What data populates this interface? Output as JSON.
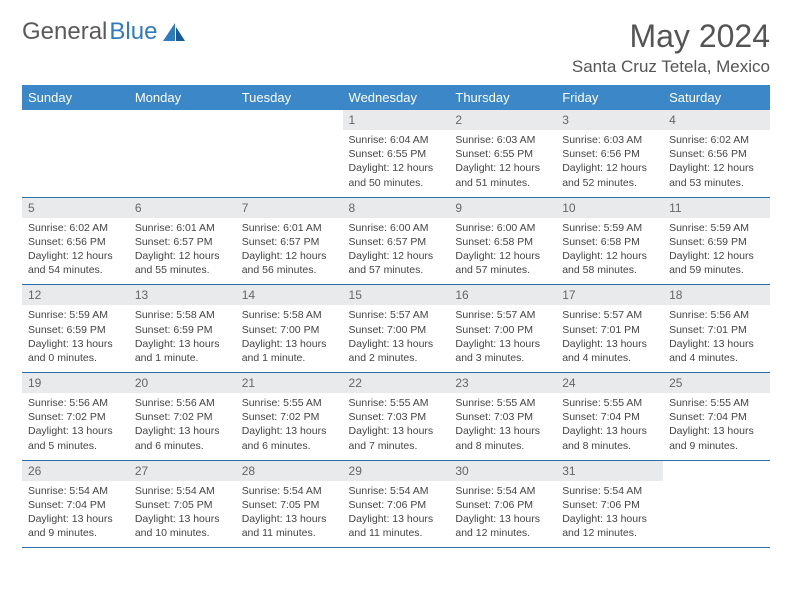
{
  "logo": {
    "part1": "General",
    "part2": "Blue"
  },
  "title": "May 2024",
  "location": "Santa Cruz Tetela, Mexico",
  "colors": {
    "header_bg": "#3b87c8",
    "header_fg": "#ffffff",
    "daynum_bg": "#e9eaeb",
    "row_border": "#2f6fa8",
    "logo_gray": "#5a5a5a",
    "logo_blue": "#2f7bbf"
  },
  "day_headers": [
    "Sunday",
    "Monday",
    "Tuesday",
    "Wednesday",
    "Thursday",
    "Friday",
    "Saturday"
  ],
  "weeks": [
    [
      {
        "n": "",
        "l1": "",
        "l2": "",
        "l3": "",
        "l4": ""
      },
      {
        "n": "",
        "l1": "",
        "l2": "",
        "l3": "",
        "l4": ""
      },
      {
        "n": "",
        "l1": "",
        "l2": "",
        "l3": "",
        "l4": ""
      },
      {
        "n": "1",
        "l1": "Sunrise: 6:04 AM",
        "l2": "Sunset: 6:55 PM",
        "l3": "Daylight: 12 hours",
        "l4": "and 50 minutes."
      },
      {
        "n": "2",
        "l1": "Sunrise: 6:03 AM",
        "l2": "Sunset: 6:55 PM",
        "l3": "Daylight: 12 hours",
        "l4": "and 51 minutes."
      },
      {
        "n": "3",
        "l1": "Sunrise: 6:03 AM",
        "l2": "Sunset: 6:56 PM",
        "l3": "Daylight: 12 hours",
        "l4": "and 52 minutes."
      },
      {
        "n": "4",
        "l1": "Sunrise: 6:02 AM",
        "l2": "Sunset: 6:56 PM",
        "l3": "Daylight: 12 hours",
        "l4": "and 53 minutes."
      }
    ],
    [
      {
        "n": "5",
        "l1": "Sunrise: 6:02 AM",
        "l2": "Sunset: 6:56 PM",
        "l3": "Daylight: 12 hours",
        "l4": "and 54 minutes."
      },
      {
        "n": "6",
        "l1": "Sunrise: 6:01 AM",
        "l2": "Sunset: 6:57 PM",
        "l3": "Daylight: 12 hours",
        "l4": "and 55 minutes."
      },
      {
        "n": "7",
        "l1": "Sunrise: 6:01 AM",
        "l2": "Sunset: 6:57 PM",
        "l3": "Daylight: 12 hours",
        "l4": "and 56 minutes."
      },
      {
        "n": "8",
        "l1": "Sunrise: 6:00 AM",
        "l2": "Sunset: 6:57 PM",
        "l3": "Daylight: 12 hours",
        "l4": "and 57 minutes."
      },
      {
        "n": "9",
        "l1": "Sunrise: 6:00 AM",
        "l2": "Sunset: 6:58 PM",
        "l3": "Daylight: 12 hours",
        "l4": "and 57 minutes."
      },
      {
        "n": "10",
        "l1": "Sunrise: 5:59 AM",
        "l2": "Sunset: 6:58 PM",
        "l3": "Daylight: 12 hours",
        "l4": "and 58 minutes."
      },
      {
        "n": "11",
        "l1": "Sunrise: 5:59 AM",
        "l2": "Sunset: 6:59 PM",
        "l3": "Daylight: 12 hours",
        "l4": "and 59 minutes."
      }
    ],
    [
      {
        "n": "12",
        "l1": "Sunrise: 5:59 AM",
        "l2": "Sunset: 6:59 PM",
        "l3": "Daylight: 13 hours",
        "l4": "and 0 minutes."
      },
      {
        "n": "13",
        "l1": "Sunrise: 5:58 AM",
        "l2": "Sunset: 6:59 PM",
        "l3": "Daylight: 13 hours",
        "l4": "and 1 minute."
      },
      {
        "n": "14",
        "l1": "Sunrise: 5:58 AM",
        "l2": "Sunset: 7:00 PM",
        "l3": "Daylight: 13 hours",
        "l4": "and 1 minute."
      },
      {
        "n": "15",
        "l1": "Sunrise: 5:57 AM",
        "l2": "Sunset: 7:00 PM",
        "l3": "Daylight: 13 hours",
        "l4": "and 2 minutes."
      },
      {
        "n": "16",
        "l1": "Sunrise: 5:57 AM",
        "l2": "Sunset: 7:00 PM",
        "l3": "Daylight: 13 hours",
        "l4": "and 3 minutes."
      },
      {
        "n": "17",
        "l1": "Sunrise: 5:57 AM",
        "l2": "Sunset: 7:01 PM",
        "l3": "Daylight: 13 hours",
        "l4": "and 4 minutes."
      },
      {
        "n": "18",
        "l1": "Sunrise: 5:56 AM",
        "l2": "Sunset: 7:01 PM",
        "l3": "Daylight: 13 hours",
        "l4": "and 4 minutes."
      }
    ],
    [
      {
        "n": "19",
        "l1": "Sunrise: 5:56 AM",
        "l2": "Sunset: 7:02 PM",
        "l3": "Daylight: 13 hours",
        "l4": "and 5 minutes."
      },
      {
        "n": "20",
        "l1": "Sunrise: 5:56 AM",
        "l2": "Sunset: 7:02 PM",
        "l3": "Daylight: 13 hours",
        "l4": "and 6 minutes."
      },
      {
        "n": "21",
        "l1": "Sunrise: 5:55 AM",
        "l2": "Sunset: 7:02 PM",
        "l3": "Daylight: 13 hours",
        "l4": "and 6 minutes."
      },
      {
        "n": "22",
        "l1": "Sunrise: 5:55 AM",
        "l2": "Sunset: 7:03 PM",
        "l3": "Daylight: 13 hours",
        "l4": "and 7 minutes."
      },
      {
        "n": "23",
        "l1": "Sunrise: 5:55 AM",
        "l2": "Sunset: 7:03 PM",
        "l3": "Daylight: 13 hours",
        "l4": "and 8 minutes."
      },
      {
        "n": "24",
        "l1": "Sunrise: 5:55 AM",
        "l2": "Sunset: 7:04 PM",
        "l3": "Daylight: 13 hours",
        "l4": "and 8 minutes."
      },
      {
        "n": "25",
        "l1": "Sunrise: 5:55 AM",
        "l2": "Sunset: 7:04 PM",
        "l3": "Daylight: 13 hours",
        "l4": "and 9 minutes."
      }
    ],
    [
      {
        "n": "26",
        "l1": "Sunrise: 5:54 AM",
        "l2": "Sunset: 7:04 PM",
        "l3": "Daylight: 13 hours",
        "l4": "and 9 minutes."
      },
      {
        "n": "27",
        "l1": "Sunrise: 5:54 AM",
        "l2": "Sunset: 7:05 PM",
        "l3": "Daylight: 13 hours",
        "l4": "and 10 minutes."
      },
      {
        "n": "28",
        "l1": "Sunrise: 5:54 AM",
        "l2": "Sunset: 7:05 PM",
        "l3": "Daylight: 13 hours",
        "l4": "and 11 minutes."
      },
      {
        "n": "29",
        "l1": "Sunrise: 5:54 AM",
        "l2": "Sunset: 7:06 PM",
        "l3": "Daylight: 13 hours",
        "l4": "and 11 minutes."
      },
      {
        "n": "30",
        "l1": "Sunrise: 5:54 AM",
        "l2": "Sunset: 7:06 PM",
        "l3": "Daylight: 13 hours",
        "l4": "and 12 minutes."
      },
      {
        "n": "31",
        "l1": "Sunrise: 5:54 AM",
        "l2": "Sunset: 7:06 PM",
        "l3": "Daylight: 13 hours",
        "l4": "and 12 minutes."
      },
      {
        "n": "",
        "l1": "",
        "l2": "",
        "l3": "",
        "l4": ""
      }
    ]
  ]
}
